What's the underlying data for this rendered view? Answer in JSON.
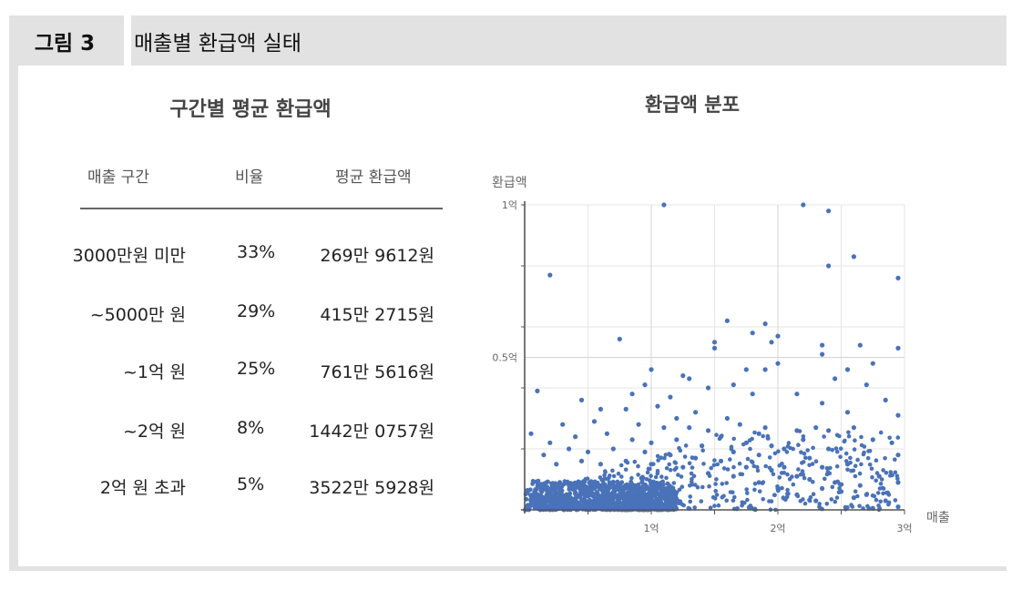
{
  "figure": {
    "label": "그림 3",
    "title": "매출별 환급액 실태"
  },
  "table_panel": {
    "title": "구간별 평균 환급액",
    "headers": [
      "매출 구간",
      "비율",
      "평균 환급액"
    ],
    "rows": [
      {
        "range": "3000만원 미만",
        "ratio": "33%",
        "avg": "269만 9612원"
      },
      {
        "range": "~5000만 원",
        "ratio": "29%",
        "avg": "415만 2715원"
      },
      {
        "range": "~1억 원",
        "ratio": "25%",
        "avg": "761만 5616원"
      },
      {
        "range": "~2억 원",
        "ratio": "8%",
        "avg": "1442만 0757원"
      },
      {
        "range": "2억 원 초과",
        "ratio": "5%",
        "avg": "3522만 5928원"
      }
    ]
  },
  "colors": {
    "frame": "#e1e2e1",
    "point": "#4a72b8",
    "grid": "#e6e6e6",
    "axis": "#555555"
  },
  "chart_data": [
    {
      "type": "table",
      "title": "구간별 평균 환급액",
      "columns": [
        "매출 구간",
        "비율",
        "평균 환급액"
      ],
      "rows": [
        [
          "3000만원 미만",
          "33%",
          "269만 9612원"
        ],
        [
          "~5000만 원",
          "29%",
          "415만 2715원"
        ],
        [
          "~1억 원",
          "25%",
          "761만 5616원"
        ],
        [
          "~2억 원",
          "8%",
          "1442만 0757원"
        ],
        [
          "2억 원 초과",
          "5%",
          "3522만 5928원"
        ]
      ]
    },
    {
      "type": "scatter",
      "title": "환급액 분포",
      "xlabel": "매출",
      "ylabel": "환급액",
      "x_unit": "억 원",
      "y_unit": "억 원",
      "xlim": [
        0,
        3
      ],
      "ylim": [
        0,
        1
      ],
      "xticks": [
        {
          "value": 1,
          "label": "1억"
        },
        {
          "value": 2,
          "label": "2억"
        },
        {
          "value": 3,
          "label": "3억"
        }
      ],
      "yticks": [
        {
          "value": 0.5,
          "label": "0.5억"
        },
        {
          "value": 1,
          "label": "1억"
        }
      ],
      "grid": true,
      "dense_cluster": {
        "x_range": [
          0,
          1.2
        ],
        "y_range": [
          0,
          0.08
        ],
        "approx_points": 1200
      },
      "points": [
        [
          1.1,
          1.0
        ],
        [
          2.2,
          1.0
        ],
        [
          2.4,
          0.98
        ],
        [
          0.2,
          0.77
        ],
        [
          2.6,
          0.83
        ],
        [
          2.4,
          0.8
        ],
        [
          2.95,
          0.76
        ],
        [
          1.6,
          0.62
        ],
        [
          1.9,
          0.61
        ],
        [
          1.8,
          0.58
        ],
        [
          2.0,
          0.57
        ],
        [
          1.5,
          0.55
        ],
        [
          1.5,
          0.53
        ],
        [
          0.75,
          0.56
        ],
        [
          1.95,
          0.55
        ],
        [
          2.35,
          0.54
        ],
        [
          2.65,
          0.54
        ],
        [
          2.95,
          0.53
        ],
        [
          2.35,
          0.51
        ],
        [
          2.0,
          0.48
        ],
        [
          1.75,
          0.46
        ],
        [
          1.9,
          0.46
        ],
        [
          0.1,
          0.39
        ],
        [
          1.0,
          0.46
        ],
        [
          1.25,
          0.44
        ],
        [
          1.3,
          0.43
        ],
        [
          2.55,
          0.46
        ],
        [
          2.75,
          0.48
        ],
        [
          2.45,
          0.43
        ],
        [
          2.7,
          0.41
        ],
        [
          1.65,
          0.41
        ],
        [
          1.45,
          0.4
        ],
        [
          0.85,
          0.38
        ],
        [
          0.95,
          0.41
        ],
        [
          1.15,
          0.37
        ],
        [
          1.8,
          0.38
        ],
        [
          2.15,
          0.38
        ],
        [
          2.35,
          0.35
        ],
        [
          2.55,
          0.32
        ],
        [
          2.85,
          0.36
        ],
        [
          2.95,
          0.31
        ],
        [
          2.6,
          0.27
        ],
        [
          0.05,
          0.25
        ],
        [
          2.3,
          0.27
        ],
        [
          2.4,
          0.26
        ],
        [
          2.15,
          0.26
        ],
        [
          1.9,
          0.27
        ],
        [
          2.75,
          0.23
        ],
        [
          2.9,
          0.22
        ],
        [
          2.95,
          0.18
        ],
        [
          0.45,
          0.36
        ],
        [
          0.6,
          0.33
        ],
        [
          0.8,
          0.33
        ],
        [
          1.05,
          0.34
        ],
        [
          1.2,
          0.3
        ],
        [
          1.35,
          0.32
        ],
        [
          1.6,
          0.3
        ],
        [
          1.7,
          0.28
        ],
        [
          1.85,
          0.25
        ],
        [
          2.05,
          0.2
        ],
        [
          2.25,
          0.17
        ],
        [
          2.35,
          0.14
        ],
        [
          2.55,
          0.15
        ],
        [
          2.8,
          0.11
        ],
        [
          2.95,
          0.09
        ],
        [
          2.7,
          0.05
        ],
        [
          2.6,
          0.04
        ],
        [
          2.5,
          0.06
        ],
        [
          2.85,
          0.03
        ],
        [
          2.95,
          0.01
        ],
        [
          0.3,
          0.28
        ],
        [
          0.55,
          0.29
        ],
        [
          0.9,
          0.28
        ],
        [
          1.1,
          0.27
        ],
        [
          1.3,
          0.27
        ],
        [
          1.45,
          0.26
        ],
        [
          1.55,
          0.24
        ],
        [
          1.75,
          0.22
        ],
        [
          1.95,
          0.21
        ],
        [
          2.2,
          0.23
        ],
        [
          2.4,
          0.2
        ],
        [
          0.2,
          0.22
        ],
        [
          0.4,
          0.24
        ],
        [
          0.65,
          0.25
        ],
        [
          0.85,
          0.23
        ],
        [
          1.0,
          0.22
        ],
        [
          1.2,
          0.23
        ],
        [
          1.4,
          0.21
        ],
        [
          1.65,
          0.19
        ],
        [
          1.85,
          0.18
        ],
        [
          2.05,
          0.14
        ],
        [
          2.25,
          0.1
        ],
        [
          2.45,
          0.09
        ],
        [
          2.65,
          0.08
        ],
        [
          0.15,
          0.18
        ],
        [
          0.35,
          0.2
        ],
        [
          0.5,
          0.19
        ],
        [
          0.7,
          0.2
        ],
        [
          0.95,
          0.19
        ],
        [
          1.15,
          0.18
        ],
        [
          1.35,
          0.17
        ],
        [
          1.55,
          0.16
        ],
        [
          1.75,
          0.14
        ],
        [
          1.95,
          0.13
        ],
        [
          2.15,
          0.11
        ],
        [
          2.35,
          0.07
        ],
        [
          0.25,
          0.15
        ],
        [
          0.45,
          0.16
        ],
        [
          0.6,
          0.15
        ],
        [
          0.8,
          0.16
        ],
        [
          1.0,
          0.15
        ],
        [
          1.25,
          0.14
        ],
        [
          1.45,
          0.12
        ],
        [
          1.65,
          0.11
        ],
        [
          1.85,
          0.09
        ],
        [
          2.0,
          0.07
        ],
        [
          2.15,
          0.05
        ],
        [
          2.3,
          0.03
        ]
      ]
    }
  ]
}
